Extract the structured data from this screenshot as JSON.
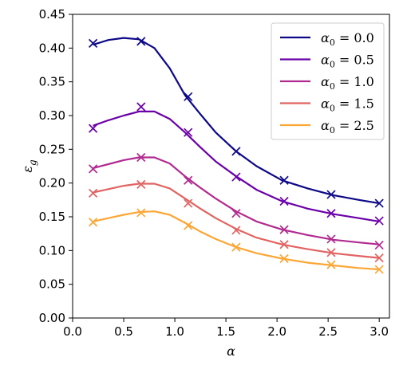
{
  "chart_data": {
    "type": "line",
    "title": "",
    "xlabel": "α",
    "ylabel": "ε_g",
    "xlim": [
      0.0,
      3.1
    ],
    "ylim": [
      0.0,
      0.45
    ],
    "xticks": [
      0.0,
      0.5,
      1.0,
      1.5,
      2.0,
      2.5,
      3.0
    ],
    "yticks": [
      0.0,
      0.05,
      0.1,
      0.15,
      0.2,
      0.25,
      0.3,
      0.35,
      0.4,
      0.45
    ],
    "xtick_labels": [
      "0.0",
      "0.5",
      "1.0",
      "1.5",
      "2.0",
      "2.5",
      "3.0"
    ],
    "ytick_labels": [
      "0.00",
      "0.05",
      "0.10",
      "0.15",
      "0.20",
      "0.25",
      "0.30",
      "0.35",
      "0.40",
      "0.45"
    ],
    "grid": false,
    "legend_position": "top-right",
    "series": [
      {
        "name": "α₀ = 0.0",
        "legend": {
          "base": "α",
          "sub": "0",
          "rest": " = 0.0"
        },
        "color": "#0d0887",
        "line": {
          "x": [
            0.2,
            0.35,
            0.5,
            0.65,
            0.8,
            0.95,
            1.1,
            1.25,
            1.4,
            1.6,
            1.8,
            2.05,
            2.3,
            2.55,
            2.8,
            3.0
          ],
          "y": [
            0.405,
            0.412,
            0.415,
            0.413,
            0.4,
            0.37,
            0.33,
            0.302,
            0.275,
            0.247,
            0.225,
            0.204,
            0.192,
            0.182,
            0.175,
            0.17
          ]
        },
        "markers": {
          "x": [
            0.2,
            0.67,
            1.13,
            1.6,
            2.07,
            2.53,
            3.0
          ],
          "y": [
            0.407,
            0.41,
            0.328,
            0.247,
            0.204,
            0.183,
            0.17
          ]
        }
      },
      {
        "name": "α₀ = 0.5",
        "legend": {
          "base": "α",
          "sub": "0",
          "rest": " = 0.5"
        },
        "color": "#6a00a8",
        "line": {
          "x": [
            0.2,
            0.35,
            0.5,
            0.65,
            0.8,
            0.95,
            1.1,
            1.25,
            1.4,
            1.6,
            1.8,
            2.05,
            2.3,
            2.55,
            2.8,
            3.0
          ],
          "y": [
            0.285,
            0.293,
            0.3,
            0.306,
            0.306,
            0.295,
            0.275,
            0.253,
            0.232,
            0.21,
            0.19,
            0.173,
            0.162,
            0.154,
            0.148,
            0.143
          ]
        },
        "markers": {
          "x": [
            0.2,
            0.67,
            1.13,
            1.6,
            2.07,
            2.53,
            3.0
          ],
          "y": [
            0.281,
            0.313,
            0.275,
            0.209,
            0.173,
            0.155,
            0.144
          ]
        }
      },
      {
        "name": "α₀ = 1.0",
        "legend": {
          "base": "α",
          "sub": "0",
          "rest": " = 1.0"
        },
        "color": "#b12a90",
        "line": {
          "x": [
            0.2,
            0.35,
            0.5,
            0.65,
            0.8,
            0.95,
            1.1,
            1.25,
            1.4,
            1.6,
            1.8,
            2.05,
            2.3,
            2.55,
            2.8,
            3.0
          ],
          "y": [
            0.222,
            0.228,
            0.234,
            0.238,
            0.238,
            0.229,
            0.21,
            0.193,
            0.177,
            0.158,
            0.143,
            0.131,
            0.123,
            0.116,
            0.112,
            0.109
          ]
        },
        "markers": {
          "x": [
            0.2,
            0.67,
            1.13,
            1.6,
            2.07,
            2.53,
            3.0
          ],
          "y": [
            0.221,
            0.238,
            0.204,
            0.155,
            0.131,
            0.117,
            0.108
          ]
        }
      },
      {
        "name": "α₀ = 1.5",
        "legend": {
          "base": "α",
          "sub": "0",
          "rest": " = 1.5"
        },
        "color": "#e16462",
        "line": {
          "x": [
            0.2,
            0.35,
            0.5,
            0.65,
            0.8,
            0.95,
            1.1,
            1.25,
            1.4,
            1.6,
            1.8,
            2.05,
            2.3,
            2.55,
            2.8,
            3.0
          ],
          "y": [
            0.186,
            0.191,
            0.196,
            0.199,
            0.199,
            0.192,
            0.177,
            0.162,
            0.148,
            0.132,
            0.119,
            0.109,
            0.102,
            0.096,
            0.092,
            0.089
          ]
        },
        "markers": {
          "x": [
            0.2,
            0.67,
            1.13,
            1.6,
            2.07,
            2.53,
            3.0
          ],
          "y": [
            0.185,
            0.198,
            0.17,
            0.13,
            0.109,
            0.097,
            0.089
          ]
        }
      },
      {
        "name": "α₀ = 2.5",
        "legend": {
          "base": "α",
          "sub": "0",
          "rest": " = 2.5"
        },
        "color": "#fca636",
        "line": {
          "x": [
            0.2,
            0.35,
            0.5,
            0.65,
            0.8,
            0.95,
            1.1,
            1.25,
            1.4,
            1.6,
            1.8,
            2.05,
            2.3,
            2.55,
            2.8,
            3.0
          ],
          "y": [
            0.143,
            0.148,
            0.153,
            0.157,
            0.158,
            0.153,
            0.141,
            0.128,
            0.117,
            0.105,
            0.096,
            0.088,
            0.082,
            0.078,
            0.074,
            0.072
          ]
        },
        "markers": {
          "x": [
            0.2,
            0.67,
            1.13,
            1.6,
            2.07,
            2.53,
            3.0
          ],
          "y": [
            0.142,
            0.156,
            0.137,
            0.105,
            0.088,
            0.079,
            0.072
          ]
        }
      }
    ]
  }
}
